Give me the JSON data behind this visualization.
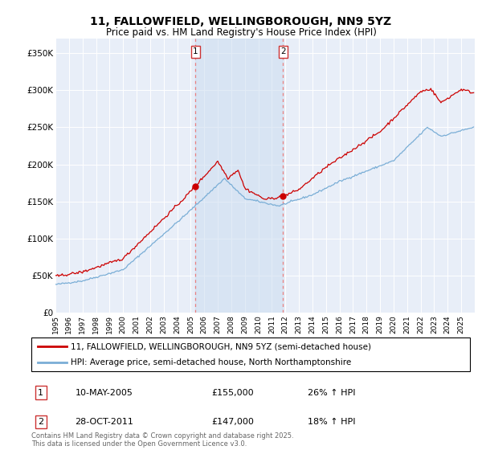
{
  "title": "11, FALLOWFIELD, WELLINGBOROUGH, NN9 5YZ",
  "subtitle": "Price paid vs. HM Land Registry's House Price Index (HPI)",
  "ylim": [
    0,
    370000
  ],
  "yticks": [
    0,
    50000,
    100000,
    150000,
    200000,
    250000,
    300000,
    350000
  ],
  "ytick_labels": [
    "£0",
    "£50K",
    "£100K",
    "£150K",
    "£200K",
    "£250K",
    "£300K",
    "£350K"
  ],
  "line1_color": "#cc0000",
  "line2_color": "#7aaed6",
  "marker1_date": 2005.36,
  "marker2_date": 2011.83,
  "vline_color": "#e88080",
  "legend_line1": "11, FALLOWFIELD, WELLINGBOROUGH, NN9 5YZ (semi-detached house)",
  "legend_line2": "HPI: Average price, semi-detached house, North Northamptonshire",
  "annotation1_date": "10-MAY-2005",
  "annotation1_price": "£155,000",
  "annotation1_hpi": "26% ↑ HPI",
  "annotation2_date": "28-OCT-2011",
  "annotation2_price": "£147,000",
  "annotation2_hpi": "18% ↑ HPI",
  "footer": "Contains HM Land Registry data © Crown copyright and database right 2025.\nThis data is licensed under the Open Government Licence v3.0.",
  "bg_color": "#ffffff",
  "plot_bg_color": "#e8eef8",
  "grid_color": "#ffffff",
  "xmin": 1995,
  "xmax": 2026
}
